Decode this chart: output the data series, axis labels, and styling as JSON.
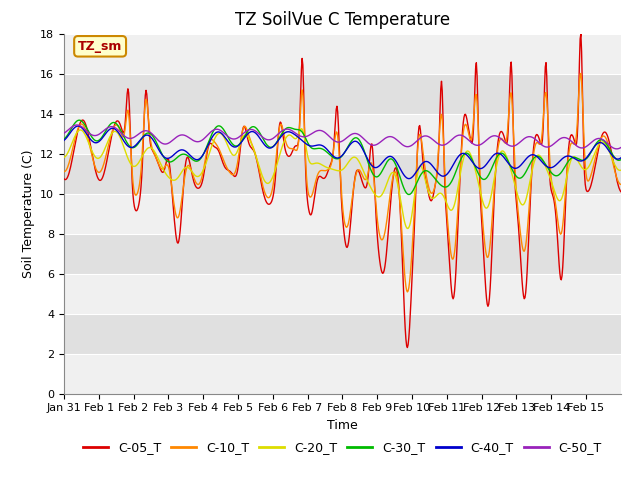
{
  "title": "TZ SoilVue C Temperature",
  "xlabel": "Time",
  "ylabel": "Soil Temperature (C)",
  "ylim": [
    0,
    18
  ],
  "yticks": [
    0,
    2,
    4,
    6,
    8,
    10,
    12,
    14,
    16,
    18
  ],
  "x_labels": [
    "Jan 31",
    "Feb 1",
    "Feb 2",
    "Feb 3",
    "Feb 4",
    "Feb 5",
    "Feb 6",
    "Feb 7",
    "Feb 8",
    "Feb 9",
    "Feb 10",
    "Feb 11",
    "Feb 12",
    "Feb 13",
    "Feb 14",
    "Feb 15"
  ],
  "legend_labels": [
    "C-05_T",
    "C-10_T",
    "C-20_T",
    "C-30_T",
    "C-40_T",
    "C-50_T"
  ],
  "line_colors": [
    "#dd0000",
    "#ff8800",
    "#dddd00",
    "#00bb00",
    "#0000cc",
    "#9922bb"
  ],
  "annotation_text": "TZ_sm",
  "annotation_box_color": "#ffffcc",
  "annotation_box_edge": "#cc8800",
  "title_fontsize": 12,
  "axis_label_fontsize": 9,
  "tick_fontsize": 8,
  "legend_fontsize": 9,
  "band_colors": [
    "#f0f0f0",
    "#e0e0e0"
  ]
}
